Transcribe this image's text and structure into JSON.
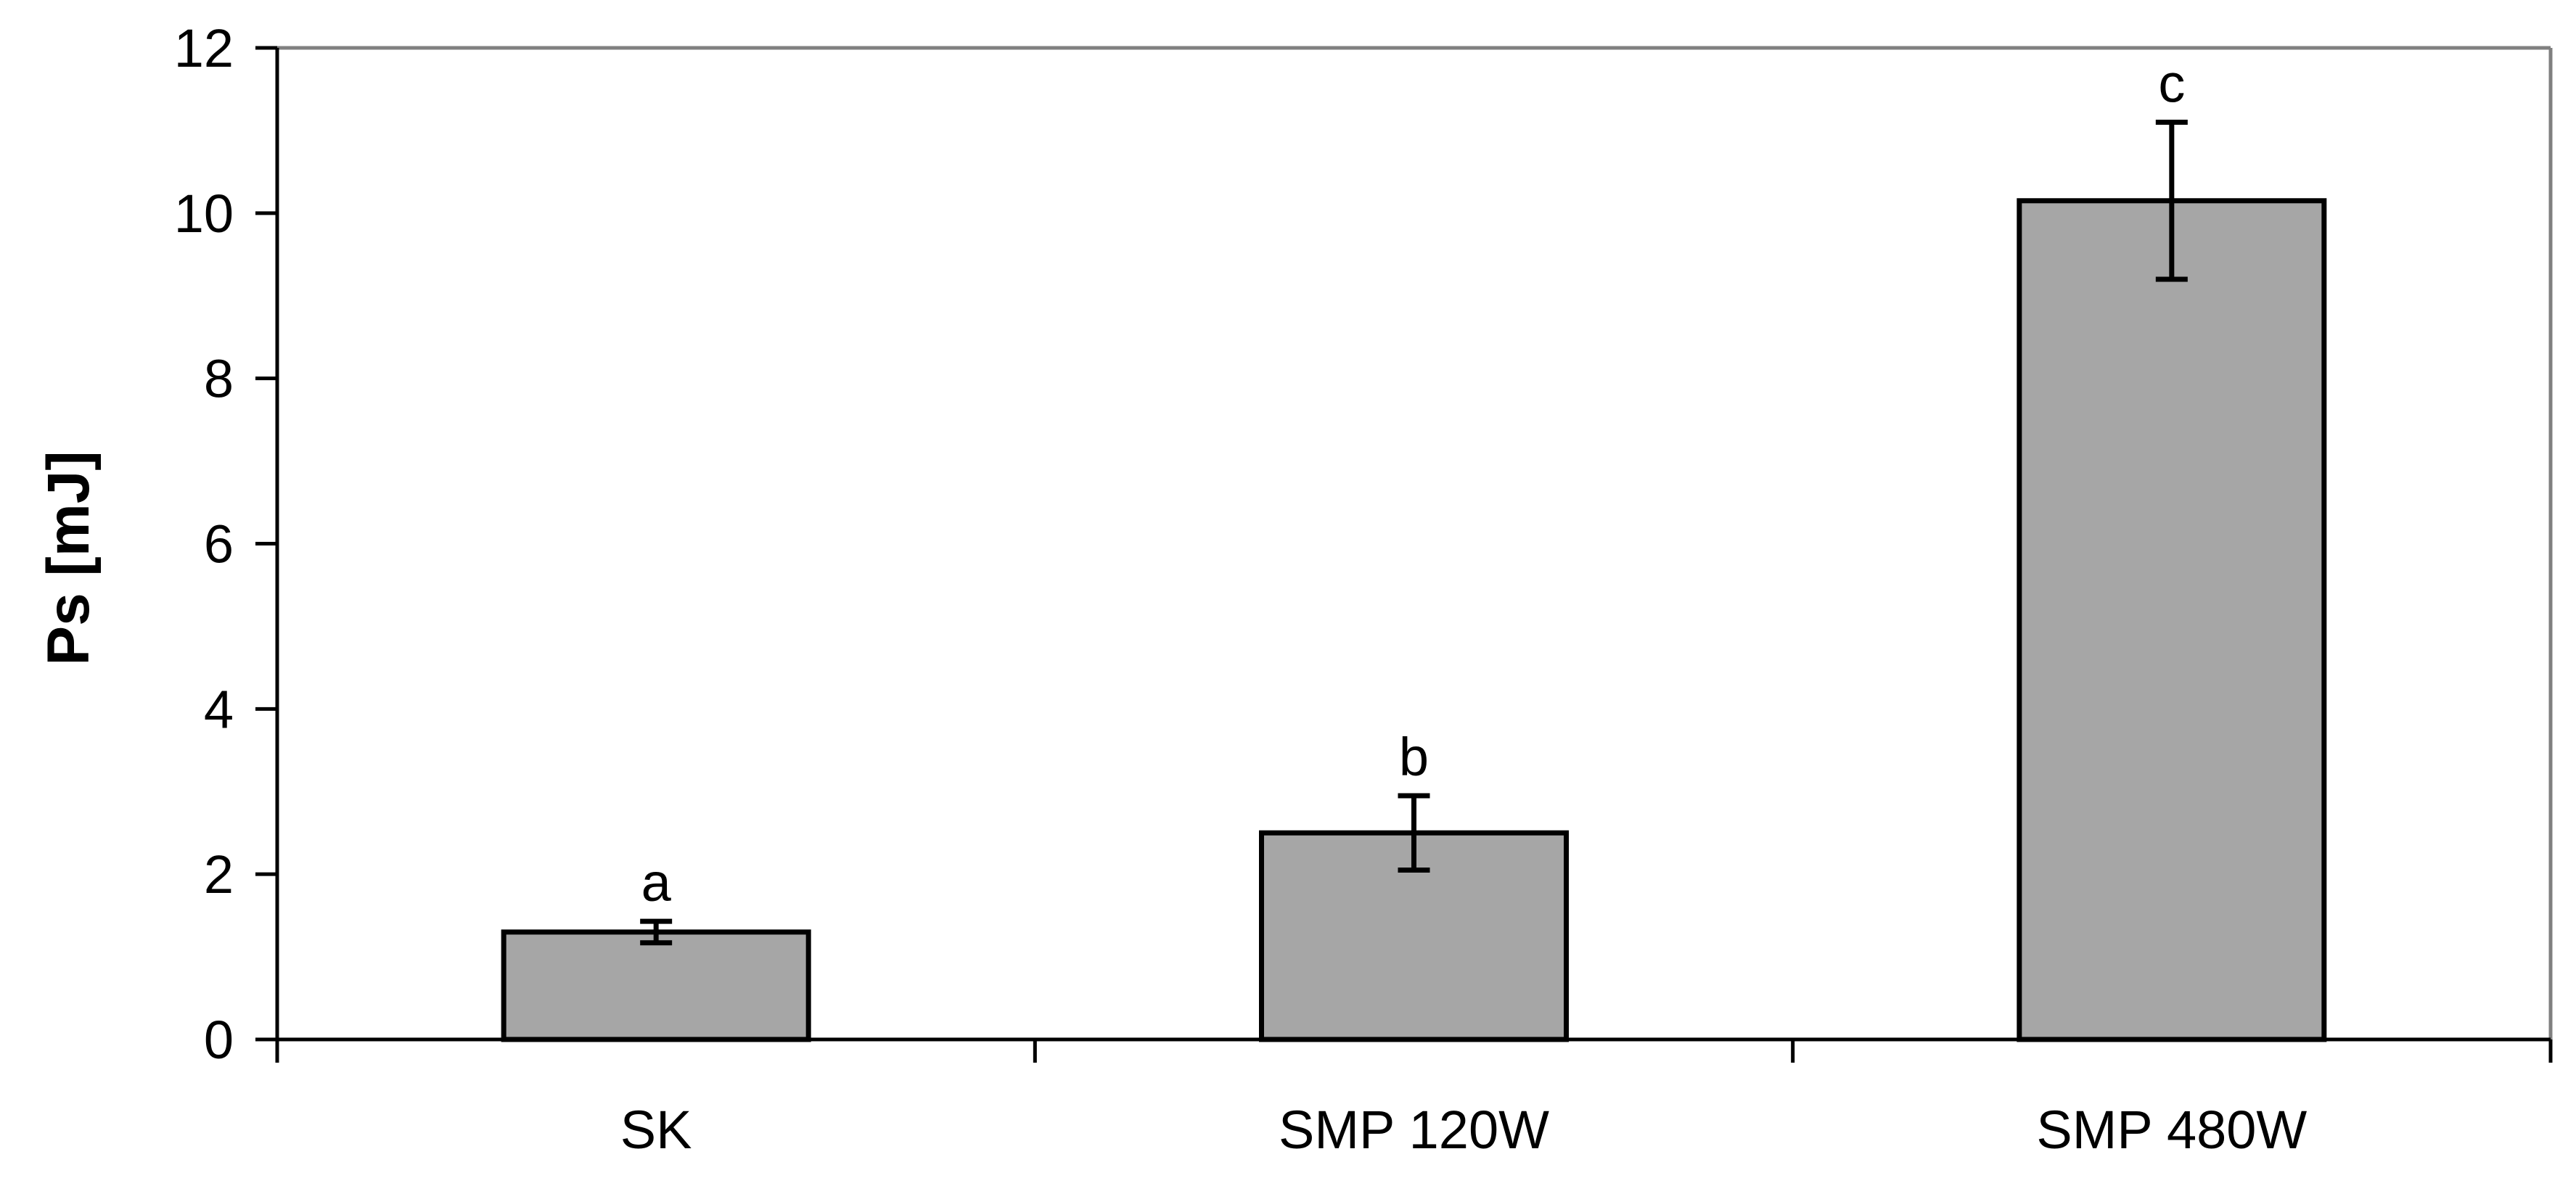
{
  "chart_data": {
    "type": "bar",
    "title": "",
    "xlabel": "",
    "ylabel": "Ps [mJ]",
    "ylim": [
      0,
      12
    ],
    "y_ticks": [
      0,
      2,
      4,
      6,
      8,
      10,
      12
    ],
    "grid": false,
    "legend": "none",
    "categories": [
      "SK",
      "SMP 120W",
      "SMP 480W"
    ],
    "series": [
      {
        "values": [
          1.3,
          2.5,
          10.15
        ],
        "error": [
          0.13,
          0.45,
          0.95
        ]
      }
    ],
    "annotations": [
      "a",
      "b",
      "c"
    ],
    "colors": {
      "bar_fill": "#a6a6a6",
      "bar_stroke": "#000000",
      "axis": "#000000",
      "frame": "#808080",
      "background": "#ffffff"
    }
  }
}
